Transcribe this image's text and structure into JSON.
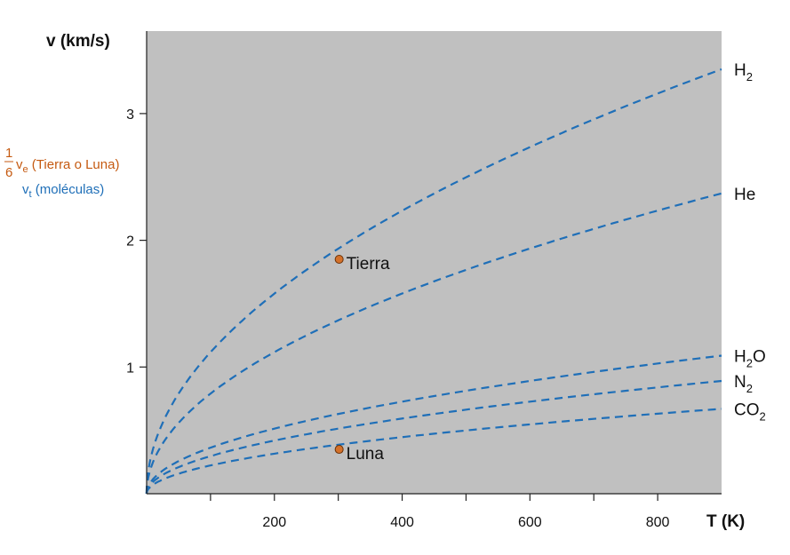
{
  "chart_data": {
    "type": "line",
    "ylabel": "v (km/s)",
    "xlabel": "T (K)",
    "xlim": [
      0,
      900
    ],
    "ylim": [
      0,
      3.0
    ],
    "x_ticks": [
      100,
      200,
      300,
      400,
      500,
      600,
      700,
      800
    ],
    "x_tick_labels": [
      "200",
      "400",
      "600",
      "800"
    ],
    "x_tick_label_values": [
      200,
      400,
      600,
      800
    ],
    "y_ticks": [
      1,
      2,
      3
    ],
    "y_tick_labels": [
      "1",
      "2",
      "3"
    ],
    "grid": false,
    "plot_background": "#c0c0c0",
    "legend": {
      "fraction_numerator": "1",
      "fraction_denominator": "6",
      "line1_main": "v",
      "line1_sub": "e",
      "line1_rest": " (Tierra o Luna)",
      "line1_color": "#c55a11",
      "line2_main": "v",
      "line2_sub": "t",
      "line2_rest": " (moléculas)",
      "line2_color": "#1f6fb8"
    },
    "series_style": {
      "color": "#1f6fb8",
      "dash": "dashed"
    },
    "series": [
      {
        "name": "H2",
        "label_main": "H",
        "label_sub": "2",
        "label_post": "",
        "v_at_900": 3.35
      },
      {
        "name": "He",
        "label_main": "He",
        "label_sub": "",
        "label_post": "",
        "v_at_900": 2.37
      },
      {
        "name": "H2O",
        "label_main": "H",
        "label_sub": "2",
        "label_post": "O",
        "v_at_900": 1.09
      },
      {
        "name": "N2",
        "label_main": "N",
        "label_sub": "2",
        "label_post": "",
        "v_at_900": 0.89
      },
      {
        "name": "CO2",
        "label_main": "CO",
        "label_sub": "2",
        "label_post": "",
        "v_at_900": 0.67
      }
    ],
    "points": [
      {
        "label": "Tierra",
        "x": 300,
        "y": 1.85,
        "color": "#d4712a"
      },
      {
        "label": "Luna",
        "x": 300,
        "y": 0.35,
        "color": "#d4712a"
      }
    ]
  }
}
